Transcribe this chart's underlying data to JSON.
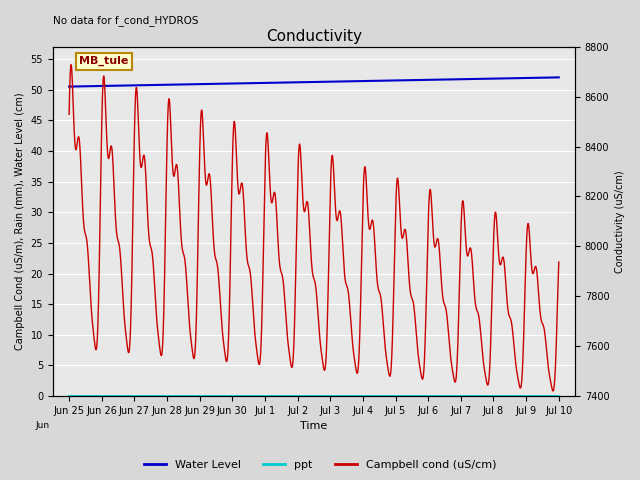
{
  "title": "Conductivity",
  "top_left_text": "No data for f_cond_HYDROS",
  "xlabel": "Time",
  "ylabel_left": "Campbell Cond (uS/m), Rain (mm), Water Level (cm)",
  "ylabel_right": "Conductivity (uS/cm)",
  "legend_box_text": "MB_tule",
  "ylim_left": [
    0,
    57
  ],
  "ylim_right": [
    7400,
    8800
  ],
  "yticks_left": [
    0,
    5,
    10,
    15,
    20,
    25,
    30,
    35,
    40,
    45,
    50,
    55
  ],
  "yticks_right": [
    7400,
    7600,
    7800,
    8000,
    8200,
    8400,
    8600,
    8800
  ],
  "fig_bg_color": "#d8d8d8",
  "plot_bg_color": "#e8e8e8",
  "grid_color": "#ffffff",
  "water_level_color": "#0000cc",
  "ppt_color": "#00cccc",
  "campbell_color": "#cc0000",
  "xtick_labels": [
    "Jun 25",
    "Jun 26",
    "Jun 27",
    "Jun 28",
    "Jun 29",
    "Jun 30",
    "Jul 1",
    "Jul 2",
    "Jul 3",
    "Jul 4",
    "Jul 5",
    "Jul 6",
    "Jul 7",
    "Jul 8",
    "Jul 9",
    "Jul 10"
  ],
  "xtick_positions": [
    0,
    1,
    2,
    3,
    4,
    5,
    6,
    7,
    8,
    9,
    10,
    11,
    12,
    13,
    14,
    15
  ],
  "xlim": [
    -0.5,
    15.5
  ],
  "figsize": [
    6.4,
    4.8
  ],
  "dpi": 100
}
